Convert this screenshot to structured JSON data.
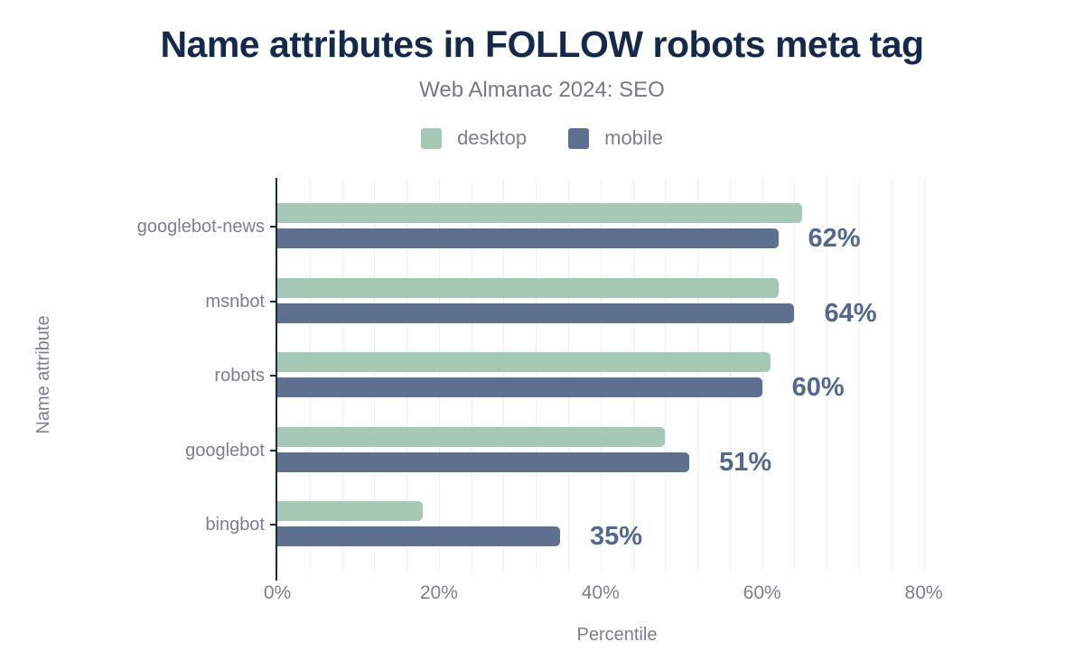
{
  "chart_data": {
    "type": "bar",
    "orientation": "horizontal",
    "title": "Name attributes in FOLLOW robots meta tag",
    "subtitle": "Web Almanac 2024: SEO",
    "xlabel": "Percentile",
    "ylabel": "Name attribute",
    "categories": [
      "googlebot-news",
      "msnbot",
      "robots",
      "googlebot",
      "bingbot"
    ],
    "series": [
      {
        "name": "desktop",
        "color": "#a6c9b6",
        "values": [
          65,
          62,
          61,
          48,
          18
        ]
      },
      {
        "name": "mobile",
        "color": "#5e708e",
        "values": [
          62,
          64,
          60,
          51,
          35
        ]
      }
    ],
    "data_labels": {
      "on_series": "mobile",
      "texts": [
        "62%",
        "64%",
        "60%",
        "51%",
        "35%"
      ]
    },
    "xlim": [
      0,
      90
    ],
    "xticks": [
      {
        "value": 0,
        "label": "0%"
      },
      {
        "value": 20,
        "label": "20%"
      },
      {
        "value": 40,
        "label": "40%"
      },
      {
        "value": 60,
        "label": "60%"
      },
      {
        "value": 80,
        "label": "80%"
      }
    ],
    "grid": {
      "show": true,
      "interval_pct": 4,
      "max_pct": 80
    },
    "legend_position": "top-center"
  },
  "colors": {
    "background": "#ffffff",
    "title": "#15294b",
    "subtitle": "#74787f",
    "axis": "#15294b",
    "muted_text": "#7b8088",
    "legend_text": "#7c818a",
    "value_label": "#54678e",
    "gridline": "#eef0f2",
    "desktop": "#a6c9b6",
    "mobile": "#5e708e"
  }
}
